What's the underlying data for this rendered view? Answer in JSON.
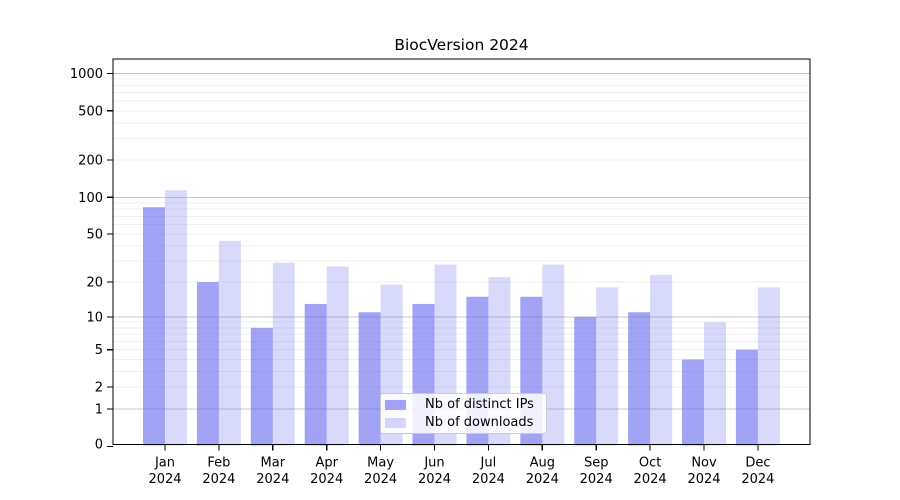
{
  "chart_data": {
    "type": "bar",
    "title": "BiocVersion 2024",
    "categories": [
      "Jan 2024",
      "Feb 2024",
      "Mar 2024",
      "Apr 2024",
      "May 2024",
      "Jun 2024",
      "Jul 2024",
      "Aug 2024",
      "Sep 2024",
      "Oct 2024",
      "Nov 2024",
      "Dec 2024"
    ],
    "series": [
      {
        "name": "Nb of distinct IPs",
        "color": "#6666F0",
        "opacity": 0.6,
        "values": [
          83,
          20,
          8,
          13,
          11,
          13,
          15,
          15,
          10,
          11,
          4,
          5
        ]
      },
      {
        "name": "Nb of downloads",
        "color": "#6666F0",
        "opacity": 0.25,
        "values": [
          114,
          44,
          29,
          27,
          19,
          28,
          22,
          28,
          18,
          23,
          9,
          18
        ]
      }
    ],
    "xlabel": "",
    "ylabel": "",
    "yscale": "log10(1+y)",
    "yticks": [
      0,
      1,
      2,
      5,
      10,
      20,
      50,
      100,
      200,
      500,
      1000
    ],
    "ylim": [
      0,
      1300
    ],
    "grid": "horizontal major and log-minor gridlines",
    "legend_position": "lower center"
  },
  "colors": {
    "background": "#FFFFFF",
    "frame": "#000000",
    "major_gridline": "#C8C8C8",
    "minor_gridline": "#EFEFEF",
    "text": "#000000"
  }
}
